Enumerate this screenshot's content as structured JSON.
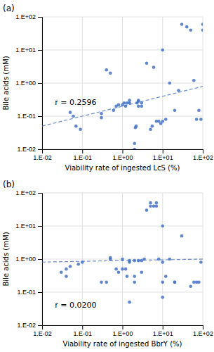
{
  "chart_data": [
    {
      "type": "scatter",
      "title": "(a)",
      "x_label": "Viability rate of ingested LcS (%)",
      "y_label": "Bile acids (mM)",
      "annotations": [
        "r = 0.2596"
      ],
      "log": true,
      "grid": true,
      "xlim": [
        0.01,
        100
      ],
      "ylim": [
        0.01,
        100
      ],
      "xticks": [
        {
          "value": 0.01,
          "label": "1.E-02"
        },
        {
          "value": 0.1,
          "label": "1.E-01"
        },
        {
          "value": 1,
          "label": "1.E+00"
        },
        {
          "value": 10,
          "label": "1.E+01"
        },
        {
          "value": 100,
          "label": "1.E+02"
        }
      ],
      "yticks": [
        {
          "value": 0.01,
          "label": "1.E-02"
        },
        {
          "value": 0.1,
          "label": "1.E-01"
        },
        {
          "value": 1,
          "label": "1.E+00"
        },
        {
          "value": 10,
          "label": "1.E+01"
        },
        {
          "value": 100,
          "label": "1.E+02"
        }
      ],
      "series": [
        {
          "type": "scatter",
          "color": "#4472C4",
          "x": [
            0.07,
            0.09,
            0.05,
            0.06,
            0.3,
            0.3,
            0.5,
            0.4,
            0.6,
            0.8,
            0.7,
            1.0,
            1.1,
            1.2,
            1.3,
            1.5,
            1.5,
            2.0,
            2.0,
            2.1,
            2.2,
            2.3,
            2.5,
            2.5,
            2.5,
            3.0,
            3.0,
            4.0,
            5.0,
            5.5,
            6.0,
            7.0,
            8.0,
            9.0,
            10.0,
            10.0,
            12.0,
            15.0,
            20.0,
            25.0,
            30.0,
            40.0,
            50.0,
            60.0,
            70.0,
            80.0,
            90.0,
            100.0,
            100.0
          ],
          "values": [
            0.05,
            0.04,
            0.13,
            0.1,
            0.09,
            0.12,
            2.0,
            2.5,
            0.15,
            0.22,
            0.2,
            0.22,
            0.25,
            0.2,
            0.25,
            0.3,
            0.25,
            0.01,
            0.015,
            0.045,
            0.05,
            0.25,
            0.2,
            0.28,
            0.3,
            0.2,
            0.25,
            4.0,
            0.04,
            0.05,
            3.0,
            0.07,
            0.07,
            0.06,
            0.07,
            10.0,
            0.08,
            1.0,
            0.15,
            0.6,
            60.0,
            50.0,
            40.0,
            1.2,
            0.08,
            0.15,
            0.08,
            60.0,
            40.0
          ]
        },
        {
          "type": "line",
          "line_style": "dashed",
          "color": "#4472C4",
          "x": [
            0.01,
            100.0
          ],
          "values": [
            0.05011872336272722,
            0.7943282347242815
          ]
        }
      ]
    },
    {
      "type": "scatter",
      "title": "(b)",
      "x_label": "Viability rate of ingested BbrY (%)",
      "y_label": "Bile acids (mM)",
      "annotations": [
        "r = 0.0200"
      ],
      "log": true,
      "grid": true,
      "xlim": [
        0.01,
        100
      ],
      "ylim": [
        0.01,
        100
      ],
      "xticks": [
        {
          "value": 0.01,
          "label": "1.E-02"
        },
        {
          "value": 0.1,
          "label": "1.E-01"
        },
        {
          "value": 1,
          "label": "1.E+00"
        },
        {
          "value": 10,
          "label": "1.E+01"
        },
        {
          "value": 100,
          "label": "1.E+02"
        }
      ],
      "yticks": [
        {
          "value": 0.01,
          "label": "1.E-02"
        },
        {
          "value": 0.1,
          "label": "1.E-01"
        },
        {
          "value": 1,
          "label": "1.E+00"
        },
        {
          "value": 10,
          "label": "1.E+01"
        },
        {
          "value": 100,
          "label": "1.E+02"
        }
      ],
      "series": [
        {
          "type": "scatter",
          "color": "#4472C4",
          "x": [
            0.03,
            0.04,
            0.04,
            0.05,
            0.08,
            0.1,
            0.3,
            0.4,
            0.5,
            0.5,
            0.7,
            0.8,
            1.0,
            1.0,
            1.2,
            1.3,
            1.5,
            1.5,
            1.5,
            2.0,
            2.0,
            2.0,
            2.5,
            3.0,
            3.0,
            3.5,
            4.0,
            5.0,
            5.0,
            6.0,
            7.0,
            7.0,
            8.0,
            10.0,
            10.0,
            10.0,
            10.0,
            12.0,
            15.0,
            20.0,
            20.0,
            30.0,
            50.0,
            60.0,
            70.0,
            80.0,
            90.0
          ],
          "values": [
            0.4,
            0.3,
            0.5,
            0.6,
            0.7,
            0.8,
            0.2,
            0.2,
            1.1,
            1.0,
            0.5,
            0.4,
            0.5,
            1.0,
            0.5,
            0.3,
            0.8,
            0.9,
            0.05,
            0.2,
            0.3,
            0.9,
            0.9,
            0.4,
            0.9,
            1.0,
            30.0,
            40.0,
            50.0,
            40.0,
            40.0,
            50.0,
            1.0,
            0.07,
            0.8,
            10.0,
            0.2,
            0.3,
            1.0,
            0.2,
            0.2,
            5.0,
            0.15,
            0.2,
            0.2,
            0.2,
            0.8
          ]
        },
        {
          "type": "line",
          "line_style": "dashed",
          "color": "#4472C4",
          "x": [
            0.01,
            100.0
          ],
          "values": [
            0.8128305161640992,
            1.0
          ]
        }
      ]
    }
  ]
}
